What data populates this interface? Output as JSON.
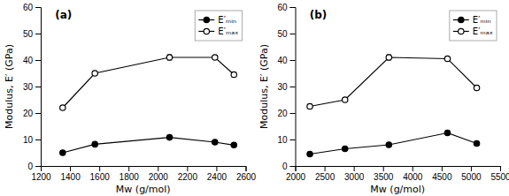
{
  "chart_data": [
    {
      "type": "line",
      "title": "(a)",
      "x": [
        1350,
        1570,
        2080,
        2390,
        2520
      ],
      "series": [
        {
          "name": "E′ₘᵢₙ",
          "color": "black",
          "marker": "circle",
          "values": [
            5.0,
            8.2,
            10.8,
            9.0,
            7.9
          ],
          "errors": [
            0.5,
            0.4,
            0.5,
            0.6,
            0.3
          ]
        },
        {
          "name": "E′ₘₐₓ",
          "color": "black",
          "marker": "circle-open",
          "values": [
            22.0,
            35.0,
            41.0,
            41.0,
            34.5
          ],
          "errors": [
            0.8,
            0.8,
            1.0,
            0.8,
            0.8
          ]
        }
      ],
      "xlim": [
        1200,
        2600
      ],
      "xticks": [
        1200,
        1400,
        1600,
        1800,
        2000,
        2200,
        2400,
        2600
      ],
      "ylim": [
        0,
        60
      ],
      "yticks": [
        0,
        10,
        20,
        30,
        40,
        50,
        60
      ],
      "x_label": "Mw (g/mol)",
      "y_label": "Modulus, E′ (GPa)",
      "legend": "upper right",
      "grid": false
    },
    {
      "type": "line",
      "title": "(b)",
      "x": [
        2250,
        2850,
        3600,
        4600,
        5100
      ],
      "series": [
        {
          "name": "E′ₘᵢₙ",
          "color": "black",
          "marker": "circle",
          "values": [
            4.5,
            6.5,
            8.0,
            12.5,
            8.5
          ],
          "errors": [
            0.5,
            0.4,
            0.6,
            0.8,
            0.7
          ]
        },
        {
          "name": "E′ₘₐₓ",
          "color": "black",
          "marker": "circle-open",
          "values": [
            22.5,
            25.0,
            41.0,
            40.5,
            29.5
          ],
          "errors": [
            0.8,
            0.7,
            1.0,
            0.8,
            0.9
          ]
        }
      ],
      "xlim": [
        2000,
        5500
      ],
      "xticks": [
        2000,
        2500,
        3000,
        3500,
        4000,
        4500,
        5000,
        5500
      ],
      "ylim": [
        0,
        60
      ],
      "yticks": [
        0,
        10,
        20,
        30,
        40,
        50,
        60
      ],
      "x_label": "Mw (g/mol)",
      "y_label": "Modulus, E′ (GPa)",
      "legend": "upper right",
      "grid": false
    }
  ]
}
